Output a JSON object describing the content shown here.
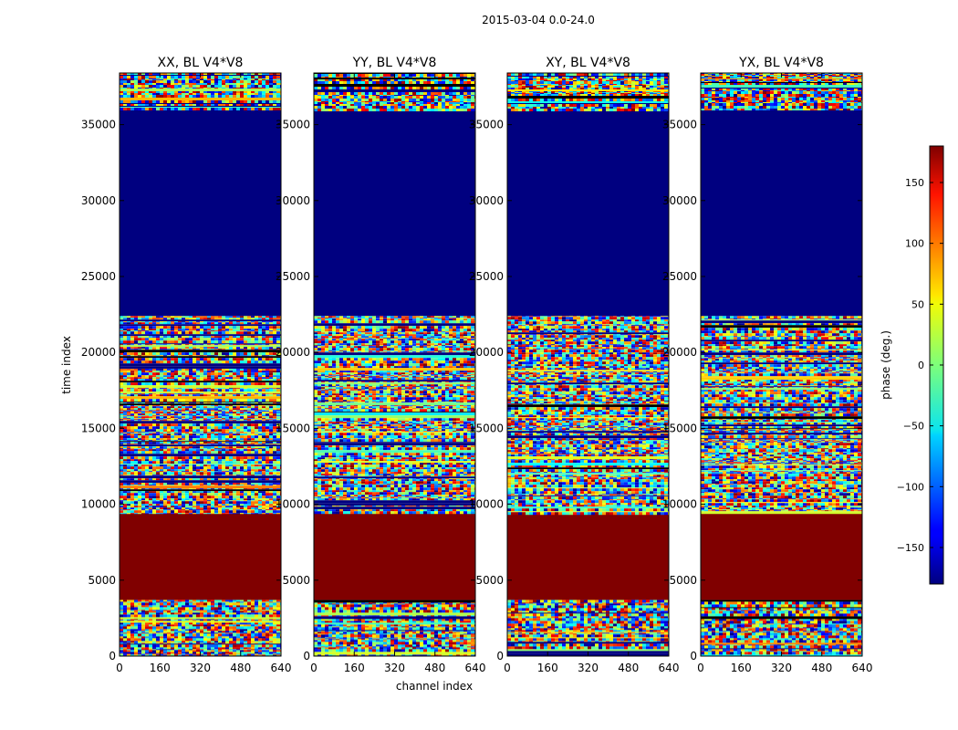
{
  "chart_data": {
    "type": "heatmap",
    "suptitle": "2015-03-04 0.0-24.0",
    "xlabel": "channel index",
    "ylabel": "time index",
    "xlim": [
      0,
      640
    ],
    "ylim": [
      0,
      38400
    ],
    "xticks": [
      0,
      160,
      320,
      480,
      640
    ],
    "yticks": [
      0,
      5000,
      10000,
      15000,
      20000,
      25000,
      30000,
      35000
    ],
    "panels": [
      {
        "title": "XX, BL V4*V8",
        "label": "XX"
      },
      {
        "title": "YY, BL V4*V8",
        "label": "YY"
      },
      {
        "title": "XY, BL V4*V8",
        "label": "XY"
      },
      {
        "title": "YX, BL V4*V8",
        "label": "YX"
      }
    ],
    "regions": [
      {
        "from": 0,
        "to": 3700,
        "kind": "noise",
        "description": "random phase"
      },
      {
        "from": 3700,
        "to": 9400,
        "kind": "constant",
        "phase": 180
      },
      {
        "from": 9400,
        "to": 22400,
        "kind": "noise",
        "description": "random phase with horizontal banding"
      },
      {
        "from": 22400,
        "to": 36000,
        "kind": "constant",
        "phase": -180
      },
      {
        "from": 36000,
        "to": 38400,
        "kind": "noise",
        "description": "sparse striped phase"
      }
    ],
    "colorbar": {
      "label": "phase (deg.)",
      "range": [
        -180,
        180
      ],
      "ticks": [
        -150,
        -100,
        -50,
        0,
        50,
        100,
        150
      ],
      "colormap": "jet"
    }
  },
  "colors": {
    "dark_red": "#800000",
    "dark_blue": "#000080"
  }
}
